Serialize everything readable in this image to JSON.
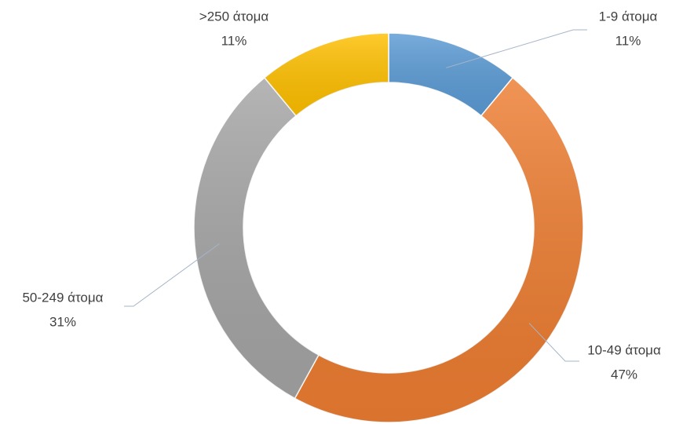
{
  "chart_data": {
    "type": "donut",
    "categories": [
      "1-9 άτομα",
      "10-49 άτομα",
      "50-249 άτομα",
      ">250 άτομα"
    ],
    "values": [
      11,
      47,
      31,
      11
    ],
    "value_labels": [
      "11%",
      "47%",
      "31%",
      "11%"
    ],
    "colors": [
      "#5b9bd5",
      "#ed7d31",
      "#a5a5a5",
      "#ffc000"
    ]
  }
}
